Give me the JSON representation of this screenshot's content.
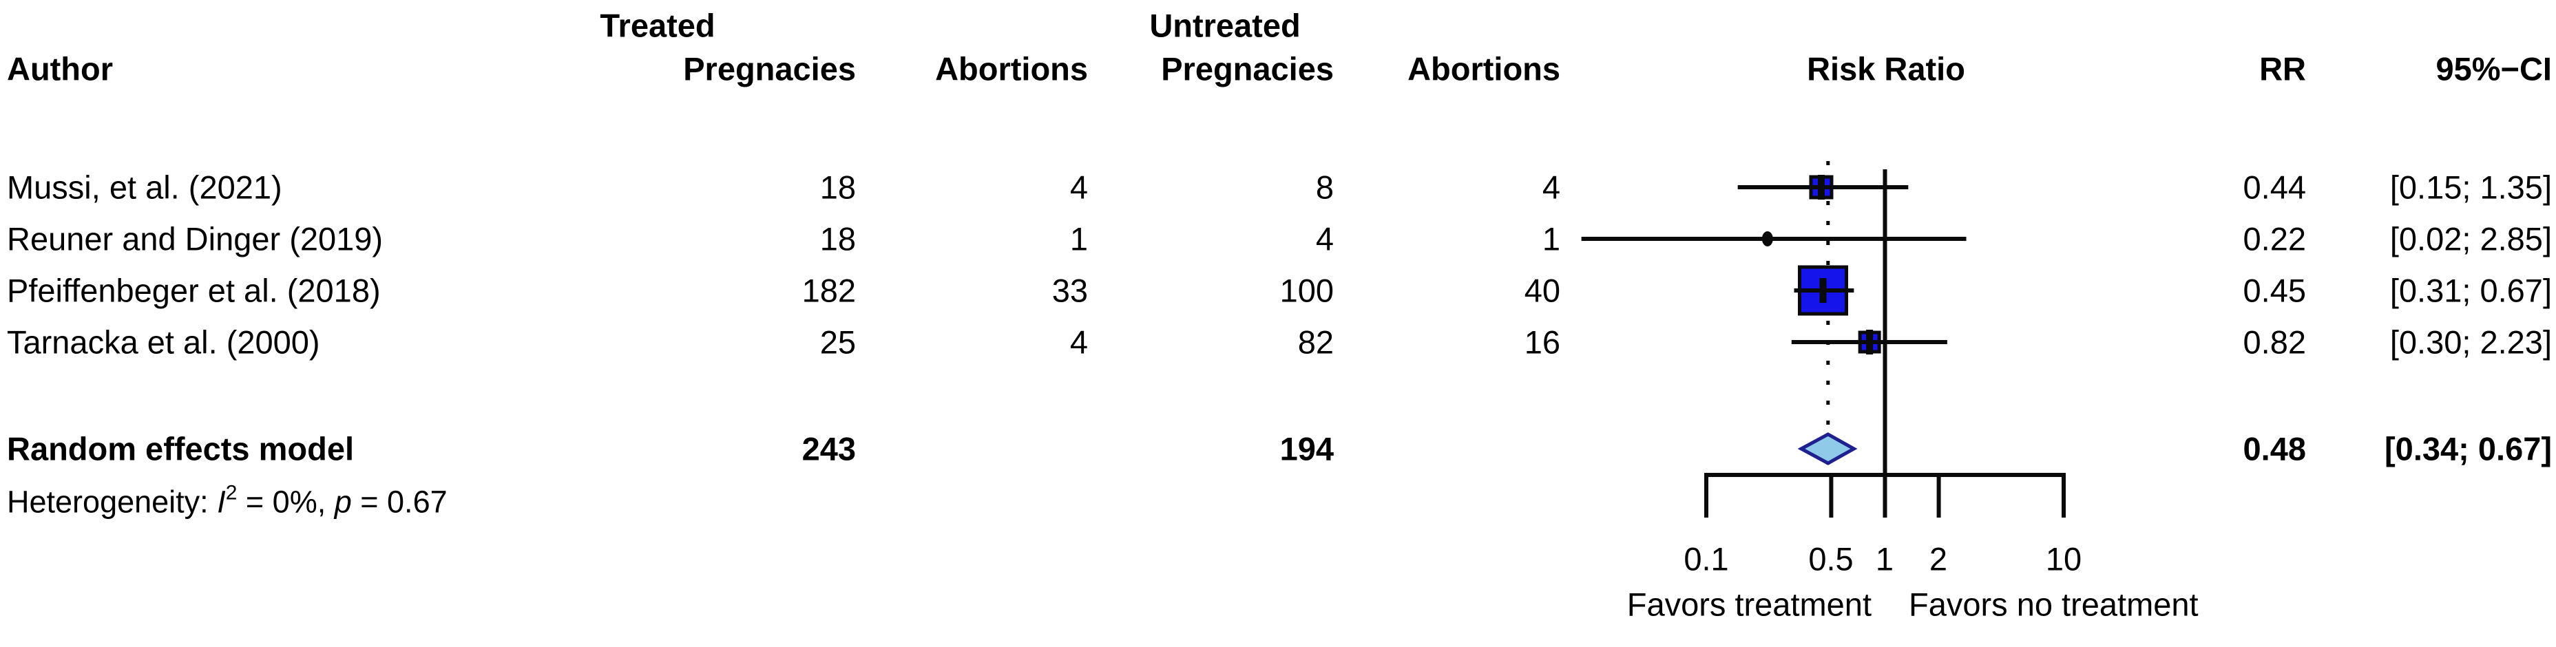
{
  "chart_data": {
    "type": "forest_plot",
    "effect_measure": "Risk Ratio",
    "headers": {
      "author": "Author",
      "treated_group": "Treated",
      "untreated_group": "Untreated",
      "treated_pregnancies": "Pregnacies",
      "treated_abortions": "Abortions",
      "untreated_pregnancies": "Pregnacies",
      "untreated_abortions": "Abortions",
      "risk_ratio": "Risk Ratio",
      "rr": "RR",
      "ci": "95%−CI"
    },
    "studies": [
      {
        "author": "Mussi, et al. (2021)",
        "treated_pregnancies": 18,
        "treated_abortions": 4,
        "untreated_pregnancies": 8,
        "untreated_abortions": 4,
        "rr": 0.44,
        "ci_lower": 0.15,
        "ci_upper": 1.35,
        "rr_label": "0.44",
        "ci_label": "[0.15; 1.35]",
        "marker_shape": "square",
        "marker_px": 30
      },
      {
        "author": "Reuner and Dinger (2019)",
        "treated_pregnancies": 18,
        "treated_abortions": 1,
        "untreated_pregnancies": 4,
        "untreated_abortions": 1,
        "rr": 0.22,
        "ci_lower": 0.02,
        "ci_upper": 2.85,
        "rr_label": "0.22",
        "ci_label": "[0.02; 2.85]",
        "marker_shape": "dot",
        "marker_px": 11
      },
      {
        "author": "Pfeiffenbeger et al. (2018)",
        "treated_pregnancies": 182,
        "treated_abortions": 33,
        "untreated_pregnancies": 100,
        "untreated_abortions": 40,
        "rr": 0.45,
        "ci_lower": 0.31,
        "ci_upper": 0.67,
        "rr_label": "0.45",
        "ci_label": "[0.31; 0.67]",
        "marker_shape": "square",
        "marker_px": 68
      },
      {
        "author": "Tarnacka et al. (2000)",
        "treated_pregnancies": 25,
        "treated_abortions": 4,
        "untreated_pregnancies": 82,
        "untreated_abortions": 16,
        "rr": 0.82,
        "ci_lower": 0.3,
        "ci_upper": 2.23,
        "rr_label": "0.82",
        "ci_label": "[0.30; 2.23]",
        "marker_shape": "square",
        "marker_px": 28
      }
    ],
    "summary": {
      "label": "Random effects model",
      "treated_total": 243,
      "untreated_total": 194,
      "rr": 0.48,
      "ci_lower": 0.34,
      "ci_upper": 0.67,
      "rr_label": "0.48",
      "ci_label": "[0.34; 0.67]"
    },
    "heterogeneity": {
      "prefix": "Heterogeneity: ",
      "i_label": "I",
      "i_sup": "2",
      "mid": " = 0%, ",
      "p_label": "p",
      "tail": " = 0.67"
    },
    "axis": {
      "scale": "log",
      "xmin": 0.1,
      "xmax": 10,
      "ticks": [
        0.1,
        0.5,
        1,
        2,
        10
      ],
      "tick_labels": [
        "0.1",
        "0.5",
        "1",
        "2",
        "10"
      ],
      "reference_line": 1,
      "pooled_line": 0.48
    },
    "footer": {
      "left": "Favors treatment",
      "right": "Favors no treatment"
    },
    "colors": {
      "square_fill": "#1414eb",
      "square_border": "#0a0a0a",
      "diamond_fill": "#8fcbe9",
      "diamond_border": "#1f2090",
      "line": "#0a0a0a",
      "text": "#000000",
      "background": "#ffffff"
    }
  }
}
